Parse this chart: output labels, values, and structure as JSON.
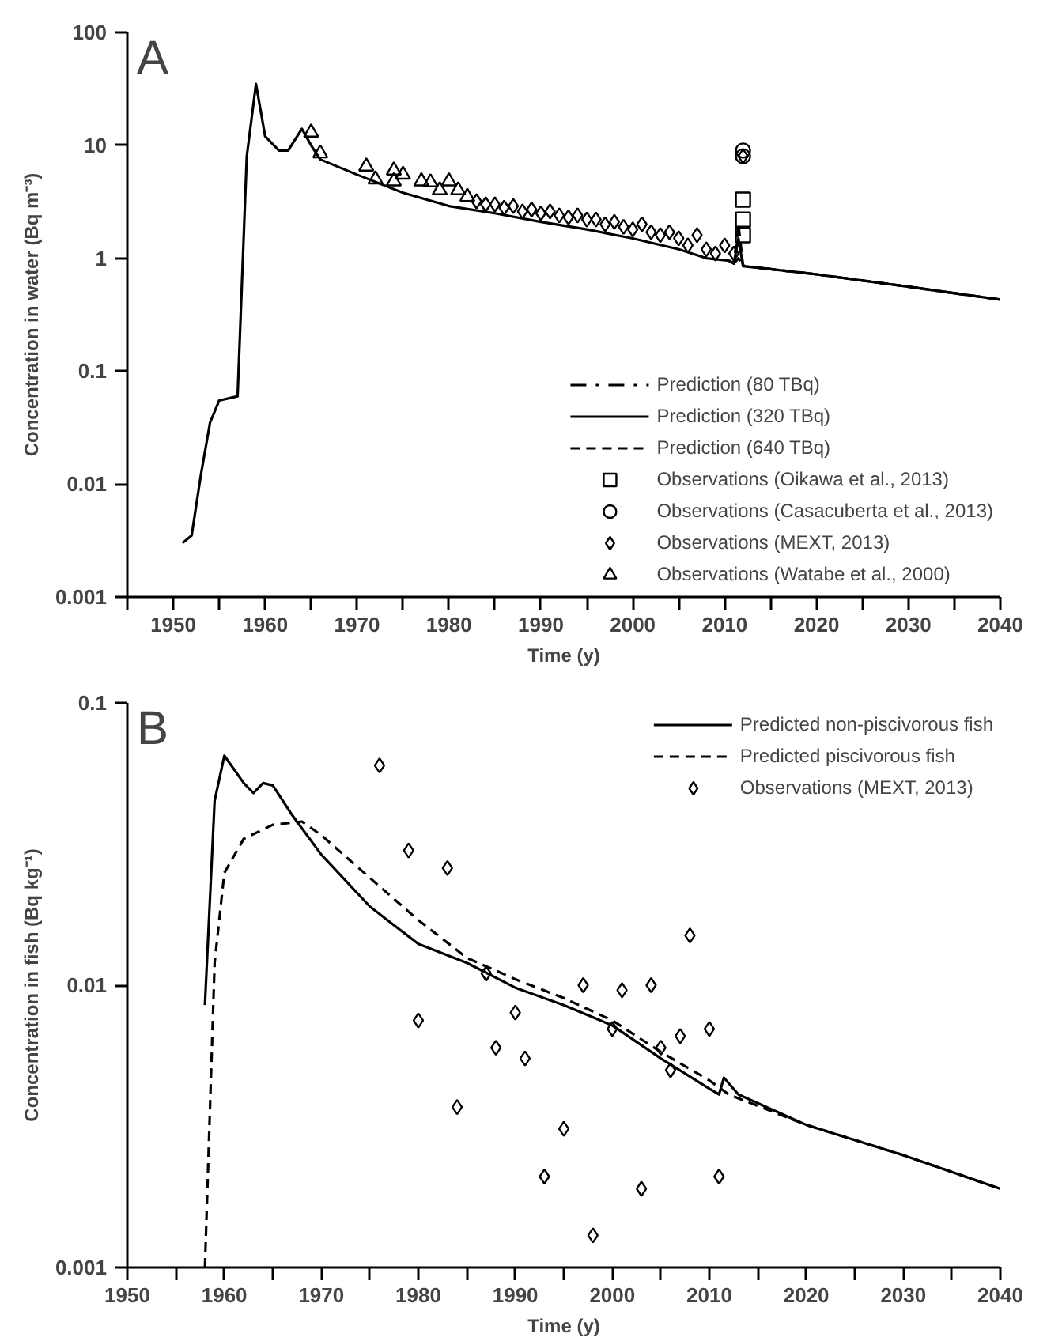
{
  "chart_data": [
    {
      "type": "line",
      "xlabel": "Time (y)",
      "ylabel": "Concentration in water (Bq m⁻³)",
      "annotations": [
        "A"
      ],
      "log": "y",
      "grid": false,
      "legend": "bottom right",
      "xlim": [
        1945,
        2040
      ],
      "ylim": [
        0.001,
        100
      ],
      "xticks": [
        {
          "value": 1945,
          "label": null
        },
        1950,
        {
          "value": 1955,
          "label": null
        },
        1960,
        {
          "value": 1965,
          "label": null
        },
        1970,
        {
          "value": 1975,
          "label": null
        },
        1980,
        {
          "value": 1985,
          "label": null
        },
        1990,
        {
          "value": 1995,
          "label": null
        },
        2000,
        {
          "value": 2005,
          "label": null
        },
        2010,
        {
          "value": 2015,
          "label": null
        },
        2020,
        {
          "value": 2025,
          "label": null
        },
        2030,
        {
          "value": 2035,
          "label": null
        },
        2040
      ],
      "yticks": [
        0.001,
        0.01,
        0.1,
        1,
        10,
        100
      ],
      "series": [
        {
          "name": "Prediction (80 TBq)",
          "line_style": "dashdot",
          "color": "#000000",
          "x": [
            2010.5,
            2011,
            2011.5,
            2012,
            2015,
            2020,
            2030,
            2040
          ],
          "values": [
            0.95,
            0.9,
            1.0,
            0.85,
            0.8,
            0.72,
            0.56,
            0.43
          ]
        },
        {
          "name": "Prediction (320 TBq)",
          "line_style": "solid",
          "color": "#000000",
          "x": [
            1951,
            1952,
            1953,
            1954,
            1955,
            1957,
            1958,
            1959,
            1960,
            1961.5,
            1962.5,
            1964,
            1965,
            1966,
            1970,
            1975,
            1980,
            1985,
            1990,
            1995,
            2000,
            2005,
            2008,
            2010.5,
            2011,
            2011.5,
            2012,
            2015,
            2020,
            2030,
            2040
          ],
          "values": [
            0.003,
            0.0035,
            0.012,
            0.035,
            0.055,
            0.06,
            8,
            35,
            12,
            9,
            9,
            14,
            10,
            7.5,
            5.5,
            3.8,
            2.9,
            2.5,
            2.1,
            1.8,
            1.5,
            1.2,
            1.0,
            0.95,
            0.9,
            1.5,
            0.85,
            0.8,
            0.72,
            0.56,
            0.43
          ]
        },
        {
          "name": "Prediction (640 TBq)",
          "line_style": "dashed",
          "color": "#000000",
          "x": [
            2010.5,
            2011,
            2011.5,
            2012,
            2015,
            2020,
            2030,
            2040
          ],
          "values": [
            0.95,
            0.9,
            2.0,
            0.86,
            0.8,
            0.72,
            0.56,
            0.43
          ]
        },
        {
          "name": "Observations (Oikawa et al., 2013)",
          "type": "scatter",
          "marker": "square",
          "color": "#000000",
          "x": [
            2012,
            2012,
            2012
          ],
          "values": [
            3.3,
            2.2,
            1.6
          ]
        },
        {
          "name": "Observations (Casacuberta et al., 2013)",
          "type": "scatter",
          "marker": "circle",
          "color": "#000000",
          "x": [
            2012,
            2012
          ],
          "values": [
            9,
            8
          ]
        },
        {
          "name": "Observations (MEXT, 2013)",
          "type": "scatter",
          "marker": "diamond",
          "color": "#000000",
          "x": [
            1983,
            1984,
            1985,
            1986,
            1987,
            1988,
            1989,
            1990,
            1991,
            1992,
            1993,
            1994,
            1995,
            1996,
            1997,
            1998,
            1999,
            2000,
            2001,
            2002,
            2003,
            2004,
            2005,
            2006,
            2007,
            2008,
            2009,
            2010,
            2011,
            2012
          ],
          "values": [
            3.2,
            3.0,
            3.0,
            2.8,
            2.9,
            2.6,
            2.7,
            2.5,
            2.6,
            2.4,
            2.3,
            2.4,
            2.2,
            2.2,
            2.0,
            2.1,
            1.9,
            1.8,
            2.0,
            1.7,
            1.6,
            1.7,
            1.5,
            1.3,
            1.6,
            1.2,
            1.1,
            1.3,
            1.1,
            8
          ]
        },
        {
          "name": "Observations (Watabe et al., 2000)",
          "type": "scatter",
          "marker": "triangle",
          "color": "#000000",
          "x": [
            1965,
            1966,
            1971,
            1972,
            1974,
            1974,
            1975,
            1977,
            1978,
            1979,
            1980,
            1981,
            1982
          ],
          "values": [
            13,
            8.5,
            6.5,
            5,
            4.8,
            6,
            5.5,
            4.8,
            4.7,
            4,
            4.8,
            4,
            3.5
          ]
        }
      ]
    },
    {
      "type": "line",
      "xlabel": "Time (y)",
      "ylabel": "Concentration in fish (Bq kg⁻¹)",
      "annotations": [
        "B"
      ],
      "log": "y",
      "grid": false,
      "legend": "top right",
      "xlim": [
        1950,
        2040
      ],
      "ylim": [
        0.001,
        0.1
      ],
      "xticks": [
        1950,
        {
          "value": 1955,
          "label": null
        },
        1960,
        {
          "value": 1965,
          "label": null
        },
        1970,
        {
          "value": 1975,
          "label": null
        },
        1980,
        {
          "value": 1985,
          "label": null
        },
        1990,
        {
          "value": 1995,
          "label": null
        },
        2000,
        {
          "value": 2005,
          "label": null
        },
        2010,
        {
          "value": 2015,
          "label": null
        },
        2020,
        {
          "value": 2025,
          "label": null
        },
        2030,
        {
          "value": 2035,
          "label": null
        },
        2040
      ],
      "yticks": [
        0.001,
        0.01,
        0.1
      ],
      "series": [
        {
          "name": "Predicted non-piscivorous fish",
          "line_style": "solid",
          "color": "#000000",
          "x": [
            1958,
            1959,
            1960,
            1962,
            1963,
            1964,
            1965,
            1967,
            1970,
            1975,
            1980,
            1985,
            1990,
            1995,
            2000,
            2005,
            2010,
            2011,
            2011.5,
            2013,
            2020,
            2030,
            2040
          ],
          "values": [
            0.0085,
            0.045,
            0.065,
            0.052,
            0.048,
            0.052,
            0.051,
            0.04,
            0.029,
            0.019,
            0.014,
            0.012,
            0.0098,
            0.0085,
            0.0072,
            0.0055,
            0.0043,
            0.0041,
            0.0047,
            0.0041,
            0.0032,
            0.0025,
            0.0019
          ]
        },
        {
          "name": "Predicted piscivorous fish",
          "line_style": "dashed",
          "color": "#000000",
          "x": [
            1958,
            1959,
            1960,
            1962,
            1965,
            1968,
            1970,
            1975,
            1980,
            1985,
            1990,
            1995,
            2000,
            2005,
            2010,
            2012,
            2020,
            2030,
            2040
          ],
          "values": [
            0.001,
            0.012,
            0.025,
            0.033,
            0.037,
            0.038,
            0.034,
            0.024,
            0.017,
            0.0125,
            0.0105,
            0.009,
            0.0075,
            0.0058,
            0.0046,
            0.0041,
            0.0032,
            0.0025,
            0.0019
          ]
        },
        {
          "name": "Observations (MEXT, 2013)",
          "type": "scatter",
          "marker": "diamond",
          "color": "#000000",
          "x": [
            1976,
            1979,
            1980,
            1983,
            1984,
            1987,
            1988,
            1990,
            1991,
            1993,
            1995,
            1997,
            1998,
            2000,
            2001,
            2003,
            2004,
            2005,
            2006,
            2007,
            2008,
            2010,
            2011
          ],
          "values": [
            0.06,
            0.03,
            0.0075,
            0.026,
            0.0037,
            0.011,
            0.006,
            0.008,
            0.0055,
            0.0021,
            0.0031,
            0.01,
            0.0013,
            0.007,
            0.0096,
            0.0019,
            0.01,
            0.006,
            0.005,
            0.0066,
            0.015,
            0.007,
            0.0021
          ]
        }
      ]
    }
  ]
}
